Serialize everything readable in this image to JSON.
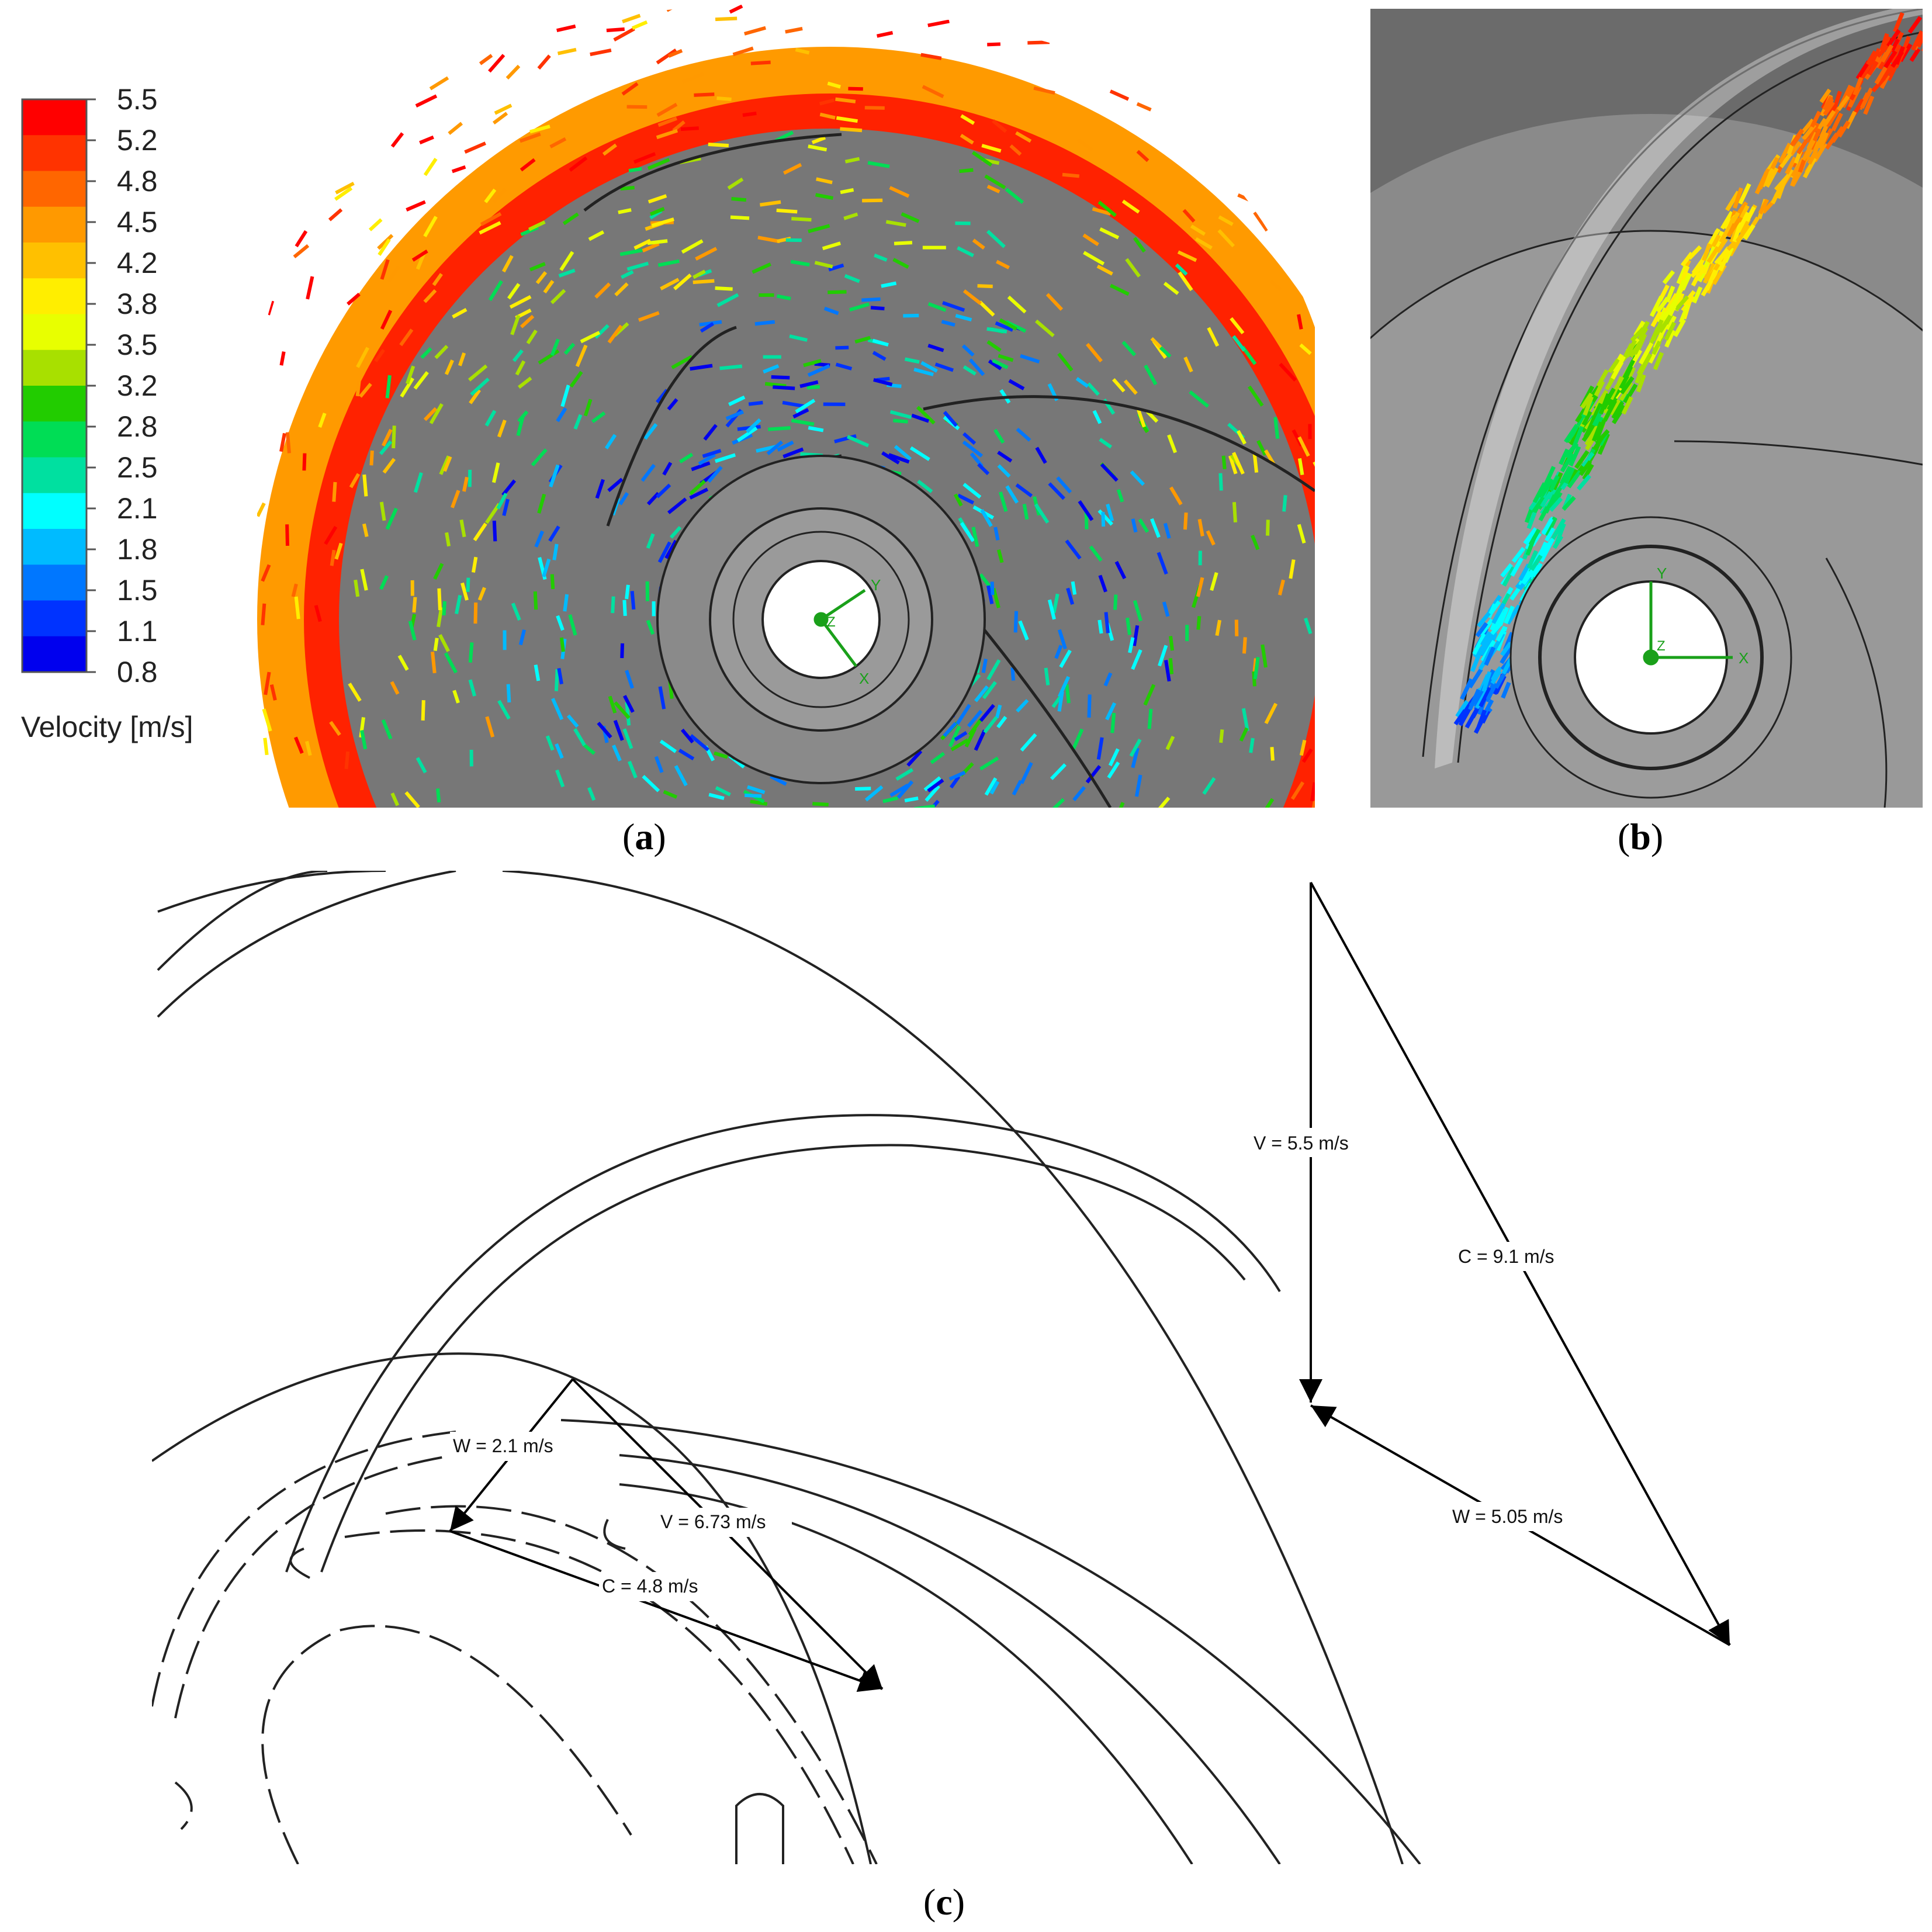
{
  "legend": {
    "title": "Velocity [m/s]",
    "ticks": [
      "5.5",
      "5.2",
      "4.8",
      "4.5",
      "4.2",
      "3.8",
      "3.5",
      "3.2",
      "2.8",
      "2.5",
      "2.1",
      "1.8",
      "1.5",
      "1.1",
      "0.8"
    ],
    "colors": [
      "#ff0000",
      "#ff3300",
      "#ff6600",
      "#ff9900",
      "#ffc000",
      "#ffee00",
      "#e8ff00",
      "#a8e000",
      "#22cc00",
      "#00dd55",
      "#00e0a0",
      "#00ffff",
      "#00bbff",
      "#0077ff",
      "#0033ff",
      "#0000ee"
    ]
  },
  "panel_a": {
    "caption": "a",
    "axes": [
      "Y",
      "Z",
      "X"
    ]
  },
  "panel_b": {
    "caption": "b",
    "axes": [
      "Y",
      "Z",
      "X"
    ]
  },
  "panel_c": {
    "caption": "c",
    "labels": {
      "v_outer": "V = 5.5 m/s",
      "c_outer": "C = 9.1 m/s",
      "w_outer": "W = 5.05 m/s",
      "w_inner": "W = 2.1 m/s",
      "v_inner": "V = 6.73 m/s",
      "c_inner": "C = 4.8 m/s"
    }
  },
  "parens": [
    "(",
    ")"
  ]
}
